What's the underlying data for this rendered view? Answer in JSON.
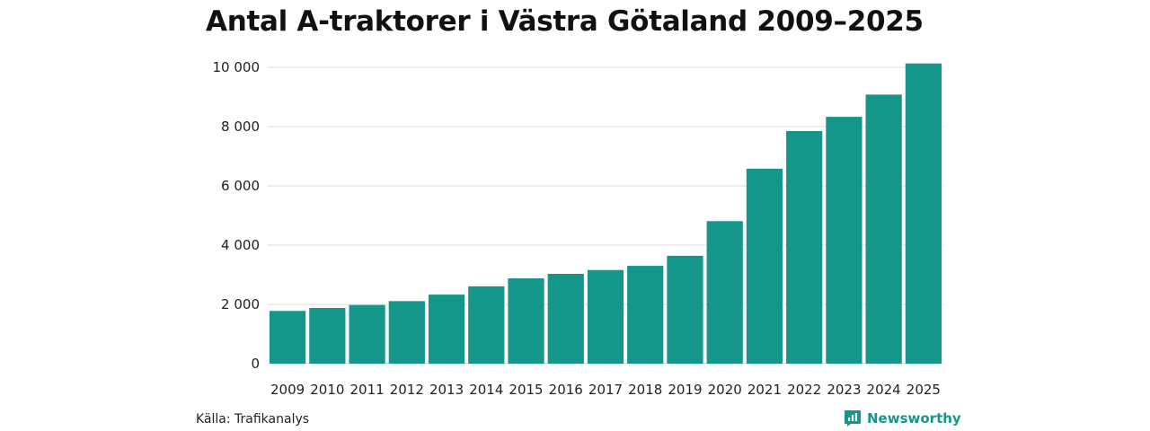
{
  "chart_data": {
    "type": "bar",
    "title": "Antal A-traktorer i Västra Götaland 2009–2025",
    "xlabel": "",
    "ylabel": "",
    "categories": [
      "2009",
      "2010",
      "2011",
      "2012",
      "2013",
      "2014",
      "2015",
      "2016",
      "2017",
      "2018",
      "2019",
      "2020",
      "2021",
      "2022",
      "2023",
      "2024",
      "2025"
    ],
    "values": [
      1780,
      1880,
      1980,
      2110,
      2330,
      2610,
      2880,
      3030,
      3160,
      3300,
      3640,
      4810,
      6580,
      7850,
      8330,
      9080,
      10130
    ],
    "ylim": [
      0,
      10000
    ],
    "yticks": [
      0,
      2000,
      4000,
      6000,
      8000,
      10000
    ],
    "ytick_labels": [
      "0",
      "2 000",
      "4 000",
      "6 000",
      "8 000",
      "10 000"
    ],
    "grid": true,
    "bar_color": "#15968a",
    "grid_color": "#dddddd"
  },
  "footer": {
    "source": "Källa: Trafikanalys",
    "brand": "Newsworthy",
    "brand_color": "#15968a",
    "brand_icon": "bar-chart-speech-icon"
  }
}
